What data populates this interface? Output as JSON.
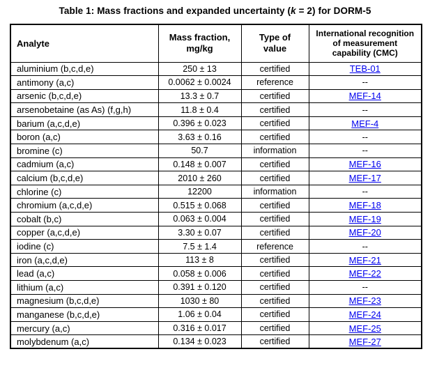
{
  "page": {
    "title_parts": {
      "before_k": "Table 1: Mass fractions and expanded uncertainty (",
      "k": "k",
      "after_k": " = 2) for DORM-5"
    }
  },
  "table": {
    "link_color": "#0000EE",
    "headers": {
      "analyte": "Analyte",
      "mass_fraction": [
        "Mass fraction,",
        "mg/kg"
      ],
      "type_of_value": [
        "Type of",
        "value"
      ],
      "cmc": [
        "International recognition",
        "of measurement",
        "capability (CMC)"
      ]
    },
    "rows": [
      {
        "analyte": "aluminium (b,c,d,e)",
        "mass_fraction": "250 ± 13",
        "type": "certified",
        "cmc": "TEB-01",
        "cmc_is_link": true
      },
      {
        "analyte": "antimony (a,c)",
        "mass_fraction": "0.0062 ± 0.0024",
        "type": "reference",
        "cmc": "--",
        "cmc_is_link": false
      },
      {
        "analyte": "arsenic (b,c,d,e)",
        "mass_fraction": "13.3 ± 0.7",
        "type": "certified",
        "cmc": "MEF-14",
        "cmc_is_link": true
      },
      {
        "analyte": "arsenobetaine (as As) (f,g,h)",
        "mass_fraction": "11.8 ± 0.4",
        "type": "certified",
        "cmc": "--",
        "cmc_is_link": false
      },
      {
        "analyte": "barium (a,c,d,e)",
        "mass_fraction": "0.396 ± 0.023",
        "type": "certified",
        "cmc": "MEF-4",
        "cmc_is_link": true
      },
      {
        "analyte": "boron (a,c)",
        "mass_fraction": "3.63 ± 0.16",
        "type": "certified",
        "cmc": "--",
        "cmc_is_link": false
      },
      {
        "analyte": "bromine (c)",
        "mass_fraction": "50.7",
        "type": "information",
        "cmc": "--",
        "cmc_is_link": false
      },
      {
        "analyte": "cadmium (a,c)",
        "mass_fraction": "0.148 ± 0.007",
        "type": "certified",
        "cmc": "MEF-16",
        "cmc_is_link": true
      },
      {
        "analyte": "calcium (b,c,d,e)",
        "mass_fraction": "2010 ± 260",
        "type": "certified",
        "cmc": "MEF-17",
        "cmc_is_link": true
      },
      {
        "analyte": "chlorine (c)",
        "mass_fraction": "12200",
        "type": "information",
        "cmc": "--",
        "cmc_is_link": false
      },
      {
        "analyte": "chromium (a,c,d,e)",
        "mass_fraction": "0.515 ± 0.068",
        "type": "certified",
        "cmc": "MEF-18",
        "cmc_is_link": true
      },
      {
        "analyte": "cobalt (b,c)",
        "mass_fraction": "0.063 ± 0.004",
        "type": "certified",
        "cmc": "MEF-19",
        "cmc_is_link": true
      },
      {
        "analyte": "copper (a,c,d,e)",
        "mass_fraction": "3.30 ± 0.07",
        "type": "certified",
        "cmc": "MEF-20",
        "cmc_is_link": true
      },
      {
        "analyte": "iodine (c)",
        "mass_fraction": "7.5 ± 1.4",
        "type": "reference",
        "cmc": "--",
        "cmc_is_link": false
      },
      {
        "analyte": "iron (a,c,d,e)",
        "mass_fraction": "113 ± 8",
        "type": "certified",
        "cmc": "MEF-21",
        "cmc_is_link": true
      },
      {
        "analyte": "lead (a,c)",
        "mass_fraction": "0.058 ± 0.006",
        "type": "certified",
        "cmc": "MEF-22",
        "cmc_is_link": true
      },
      {
        "analyte": "lithium (a,c)",
        "mass_fraction": "0.391 ± 0.120",
        "type": "certified",
        "cmc": "--",
        "cmc_is_link": false
      },
      {
        "analyte": "magnesium (b,c,d,e)",
        "mass_fraction": "1030 ± 80",
        "type": "certified",
        "cmc": "MEF-23",
        "cmc_is_link": true
      },
      {
        "analyte": "manganese (b,c,d,e)",
        "mass_fraction": "1.06 ± 0.04",
        "type": "certified",
        "cmc": "MEF-24",
        "cmc_is_link": true
      },
      {
        "analyte": "mercury (a,c)",
        "mass_fraction": "0.316 ± 0.017",
        "type": "certified",
        "cmc": "MEF-25",
        "cmc_is_link": true
      },
      {
        "analyte": "molybdenum (a,c)",
        "mass_fraction": "0.134 ± 0.023",
        "type": "certified",
        "cmc": "MEF-27",
        "cmc_is_link": true
      }
    ]
  }
}
